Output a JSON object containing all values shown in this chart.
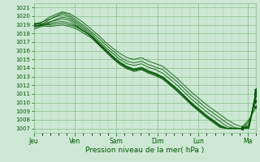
{
  "title": "Pression niveau de la mer( hPa )",
  "xlabel_days": [
    "Jeu",
    "Ven",
    "Sam",
    "Dim",
    "Lun",
    "Ma"
  ],
  "ylim": [
    1006.5,
    1021.5
  ],
  "yticks": [
    1007,
    1008,
    1009,
    1010,
    1011,
    1012,
    1013,
    1014,
    1015,
    1016,
    1017,
    1018,
    1019,
    1020,
    1021
  ],
  "bg_color": "#cce8d4",
  "grid_color_major": "#88bb88",
  "grid_color_minor": "#aad4aa",
  "line_color": "#005500",
  "figsize": [
    3.2,
    2.0
  ],
  "dpi": 100,
  "lines": [
    [
      1019.0,
      1019.2,
      1019.8,
      1020.2,
      1020.5,
      1020.3,
      1019.8,
      1019.2,
      1018.5,
      1017.8,
      1017.0,
      1016.3,
      1015.7,
      1015.2,
      1015.0,
      1015.2,
      1014.8,
      1014.5,
      1014.2,
      1013.5,
      1012.8,
      1012.0,
      1011.2,
      1010.5,
      1009.8,
      1009.2,
      1008.6,
      1008.0,
      1007.5,
      1007.2,
      1008.0,
      1009.5
    ],
    [
      1018.8,
      1019.0,
      1019.5,
      1020.0,
      1020.4,
      1020.1,
      1019.5,
      1018.9,
      1018.2,
      1017.5,
      1016.7,
      1016.0,
      1015.3,
      1014.8,
      1014.6,
      1014.8,
      1014.4,
      1014.1,
      1013.8,
      1013.1,
      1012.4,
      1011.6,
      1010.8,
      1010.1,
      1009.4,
      1008.8,
      1008.2,
      1007.6,
      1007.1,
      1007.0,
      1007.8,
      1010.2
    ],
    [
      1019.1,
      1019.3,
      1019.6,
      1019.9,
      1020.2,
      1019.9,
      1019.3,
      1018.7,
      1018.0,
      1017.2,
      1016.4,
      1015.7,
      1015.0,
      1014.5,
      1014.3,
      1014.5,
      1014.1,
      1013.8,
      1013.4,
      1012.7,
      1012.0,
      1011.2,
      1010.4,
      1009.7,
      1009.0,
      1008.4,
      1007.8,
      1007.2,
      1007.0,
      1007.0,
      1007.5,
      1010.8
    ],
    [
      1018.5,
      1018.8,
      1019.2,
      1019.6,
      1019.9,
      1019.7,
      1019.1,
      1018.5,
      1017.8,
      1017.0,
      1016.2,
      1015.4,
      1014.7,
      1014.2,
      1013.9,
      1014.1,
      1013.7,
      1013.4,
      1013.0,
      1012.3,
      1011.6,
      1010.8,
      1010.0,
      1009.3,
      1008.6,
      1008.0,
      1007.4,
      1007.0,
      1007.0,
      1007.0,
      1007.3,
      1011.2
    ],
    [
      1018.9,
      1019.0,
      1019.3,
      1019.5,
      1019.7,
      1019.5,
      1018.9,
      1018.3,
      1017.6,
      1016.8,
      1016.0,
      1015.2,
      1014.5,
      1014.0,
      1013.7,
      1013.9,
      1013.5,
      1013.2,
      1012.8,
      1012.1,
      1011.4,
      1010.6,
      1009.8,
      1009.1,
      1008.4,
      1007.8,
      1007.2,
      1007.0,
      1007.0,
      1007.0,
      1007.1,
      1011.5
    ],
    [
      1019.2,
      1019.1,
      1019.0,
      1019.1,
      1019.2,
      1019.0,
      1018.7,
      1018.2,
      1017.7,
      1016.9,
      1016.1,
      1015.3,
      1014.6,
      1014.1,
      1013.8,
      1014.0,
      1013.6,
      1013.3,
      1012.9,
      1012.2,
      1011.5,
      1010.7,
      1009.9,
      1009.2,
      1008.5,
      1007.9,
      1007.3,
      1007.0,
      1007.0,
      1007.0,
      1007.2,
      1011.0
    ],
    [
      1019.0,
      1018.9,
      1018.8,
      1018.9,
      1019.0,
      1018.8,
      1018.5,
      1018.0,
      1017.5,
      1016.7,
      1015.9,
      1015.1,
      1014.4,
      1013.9,
      1013.6,
      1013.8,
      1013.4,
      1013.1,
      1012.7,
      1012.0,
      1011.3,
      1010.5,
      1009.7,
      1009.0,
      1008.3,
      1007.7,
      1007.1,
      1007.0,
      1007.0,
      1007.0,
      1007.0,
      1010.8
    ],
    [
      1018.7,
      1018.9,
      1019.1,
      1019.3,
      1019.4,
      1019.2,
      1018.8,
      1018.3,
      1017.7,
      1016.9,
      1016.1,
      1015.3,
      1014.6,
      1014.1,
      1013.8,
      1014.0,
      1013.6,
      1013.3,
      1012.9,
      1012.2,
      1011.5,
      1010.7,
      1009.9,
      1009.2,
      1008.5,
      1007.9,
      1007.3,
      1007.0,
      1007.0,
      1007.0,
      1007.2,
      1011.0
    ]
  ]
}
